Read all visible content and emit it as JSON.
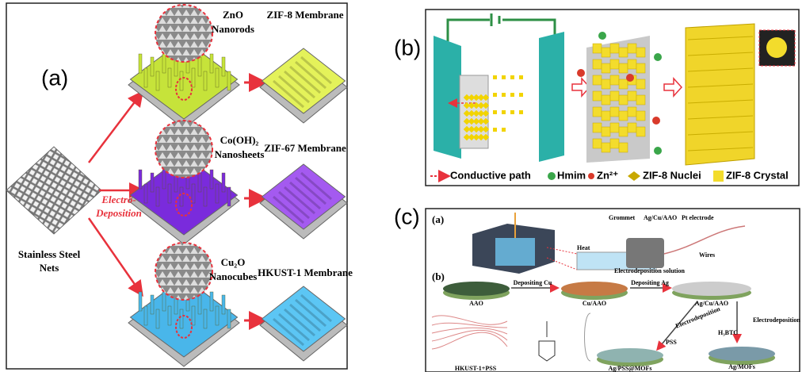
{
  "panel_a": {
    "label": "(a)",
    "steel_label": [
      "Stainless Steel",
      "Nets"
    ],
    "deposition_label": [
      "Electro-",
      "Deposition"
    ],
    "rows": [
      {
        "material": [
          "ZnO",
          "Nanorods"
        ],
        "membrane": "ZIF-8 Membrane"
      },
      {
        "material": [
          "Co(OH)₂",
          "Nanosheets"
        ],
        "membrane": "ZIF-67 Membrane"
      },
      {
        "material": [
          "Cu₂O",
          "Nanocubes"
        ],
        "membrane": "HKUST-1 Membrane"
      }
    ]
  },
  "panel_b": {
    "label": "(b)",
    "legend": [
      "Conductive path",
      "Hmim",
      "Zn²⁺",
      "ZIF-8 Nuclei",
      "ZIF-8 Crystal"
    ]
  },
  "panel_c": {
    "label": "(c)",
    "sub_a": "(a)",
    "heat": "Heat",
    "grommet": "Grommet",
    "sample": "Ag/Cu/AAO",
    "electrode": "Pt electrode",
    "wires": "Wires",
    "solution": "Electrodeposition solution",
    "sub_b": "(b)",
    "aao": "AAO",
    "dep_cu": "Depositing Cu",
    "cu_aao": "Cu/AAO",
    "dep_ag": "Depositing Ag",
    "ag_cu_aao": "Ag/Cu/AAO",
    "electrodep_left": "Electrodeposition",
    "pss": "PSS",
    "h3btc": "H₃BTC",
    "electrodep_right": "Electrodeposition",
    "ag_pss_mofs": "Ag/PSS@MOFs",
    "ag_mofs": "Ag/MOFs",
    "hkust_pss": "HKUST-1+PSS"
  }
}
